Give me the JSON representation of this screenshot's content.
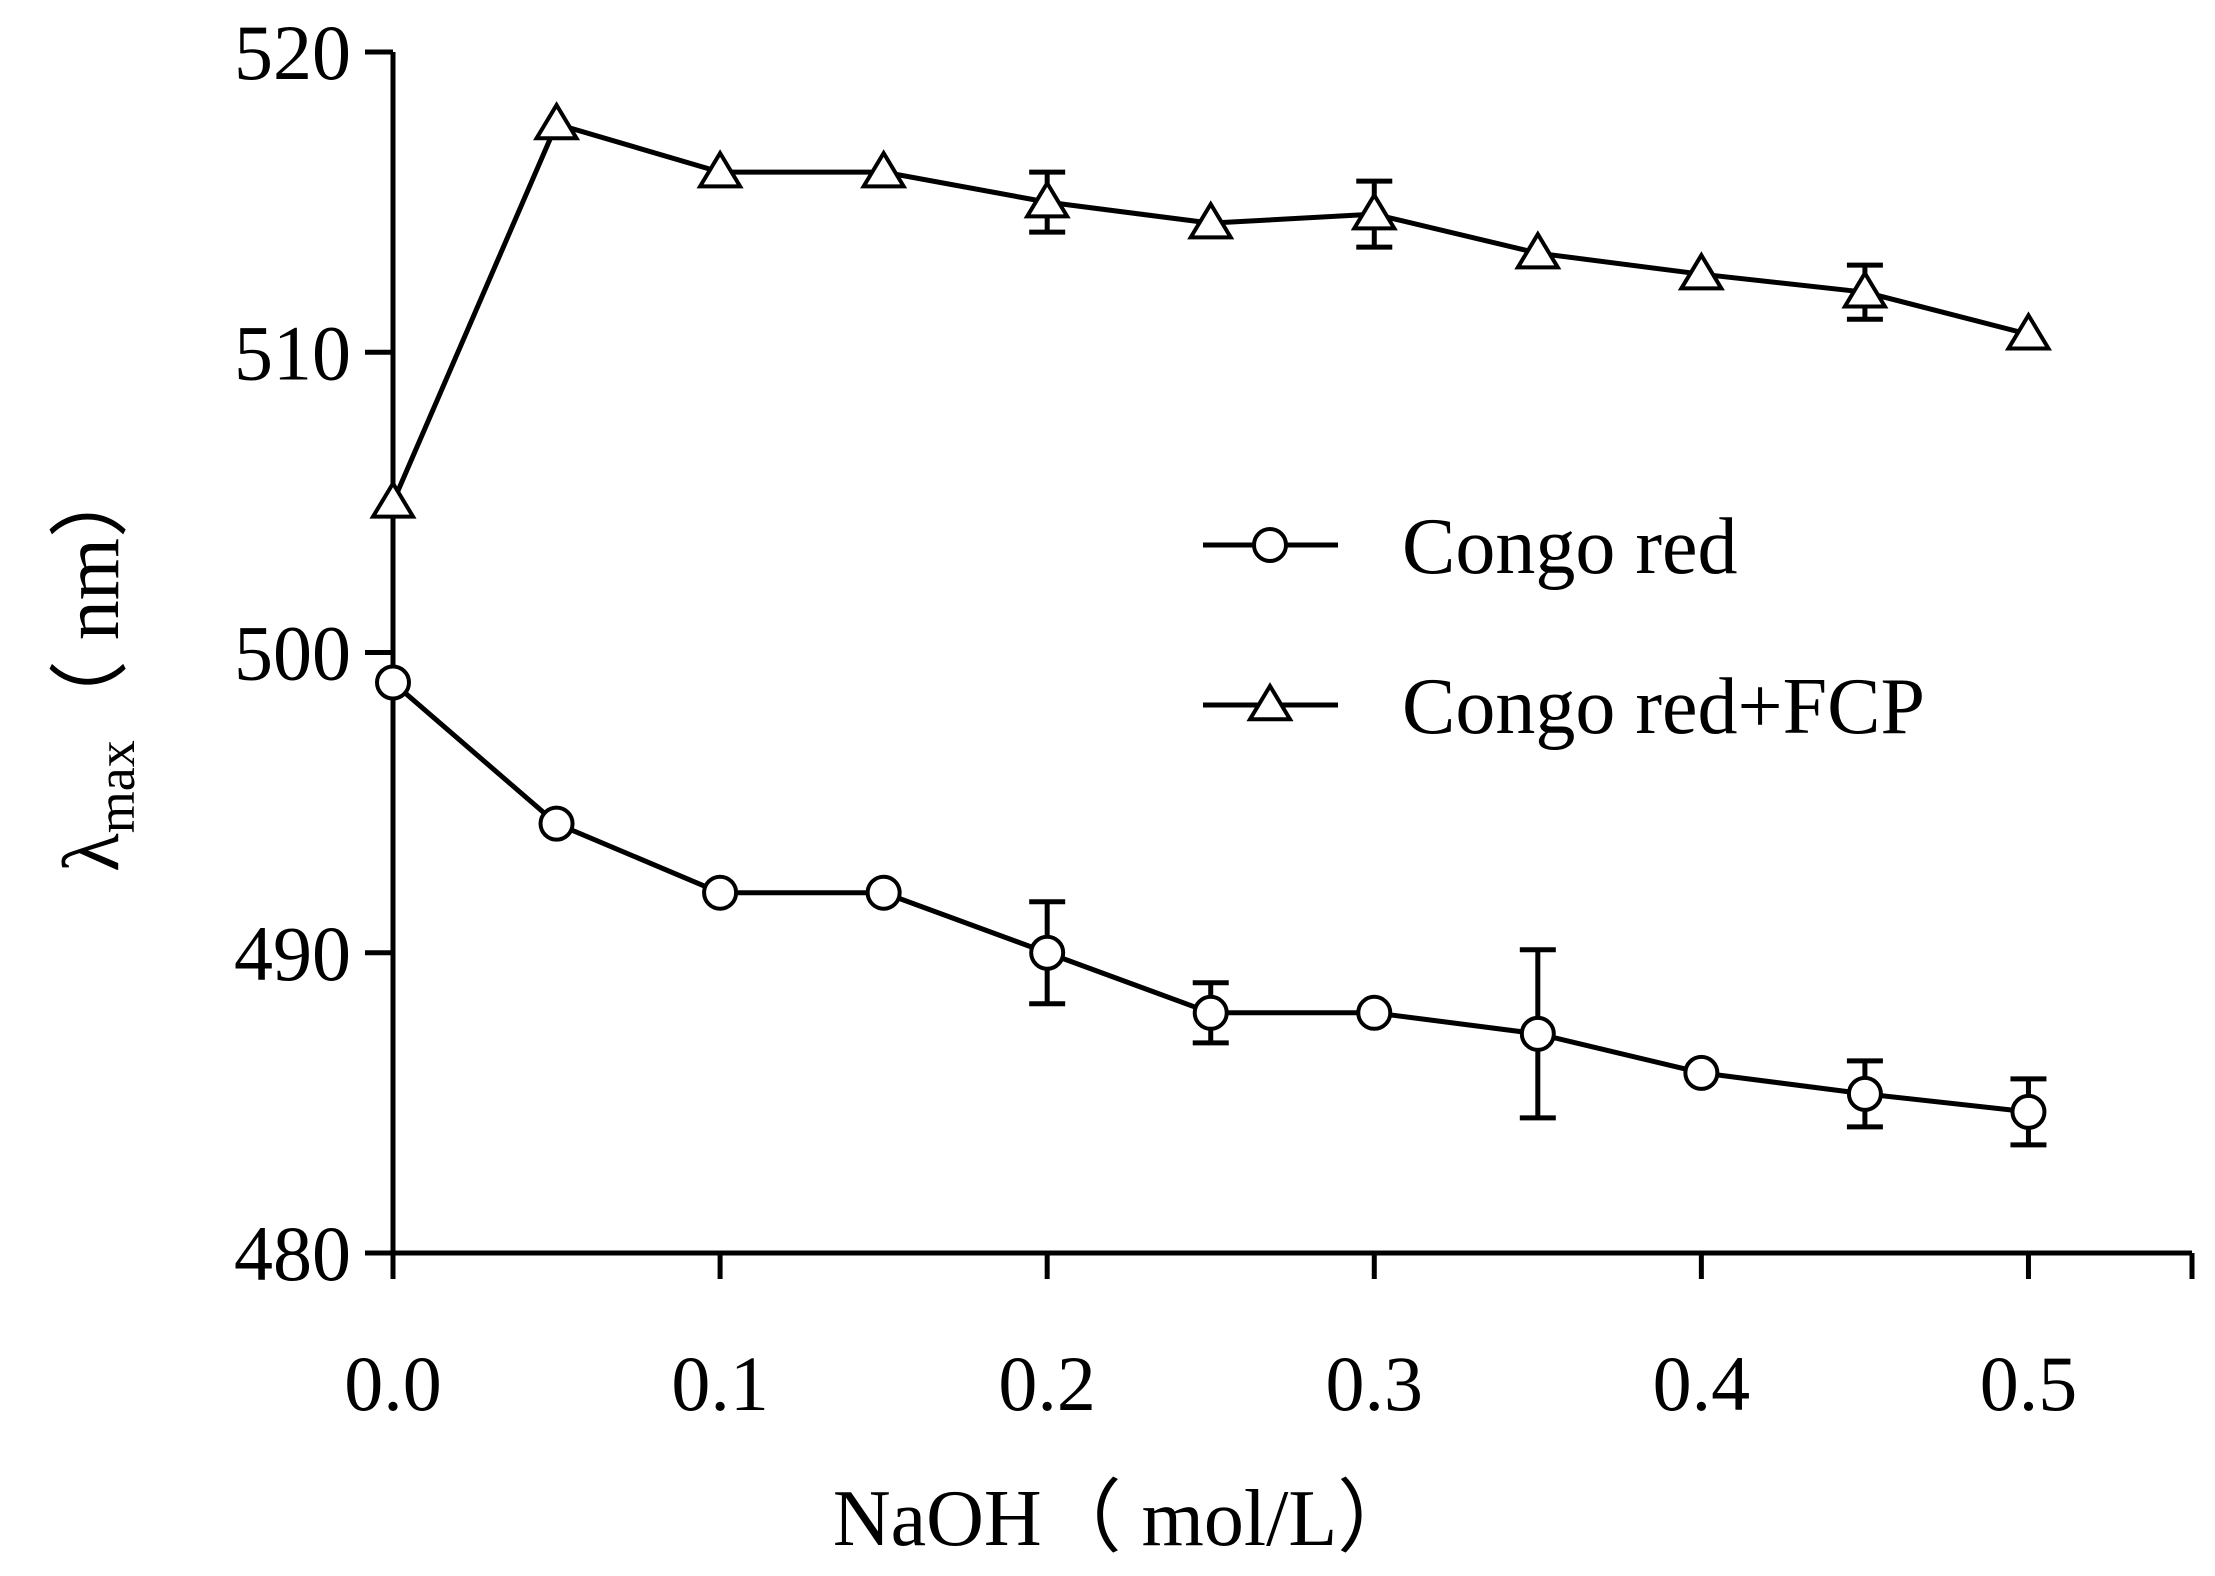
{
  "chart_data": {
    "type": "line",
    "xlabel": "NaOH（ mol/L）",
    "ylabel": {
      "symbol": "λ",
      "subscript": "max",
      "unit": "（ nm）"
    },
    "xlim": [
      0,
      0.55
    ],
    "ylim": [
      480,
      520
    ],
    "x_ticks": [
      "0.0",
      "0.1",
      "0.2",
      "0.3",
      "0.4",
      "0.5"
    ],
    "x_tick_values": [
      0,
      0.1,
      0.2,
      0.3,
      0.4,
      0.5
    ],
    "y_ticks": [
      "480",
      "490",
      "500",
      "510",
      "520"
    ],
    "y_tick_values": [
      480,
      490,
      500,
      510,
      520
    ],
    "x": [
      0,
      0.05,
      0.1,
      0.15,
      0.2,
      0.25,
      0.3,
      0.35,
      0.4,
      0.45,
      0.5
    ],
    "series": [
      {
        "name": "Congo red",
        "marker": "circle",
        "values": [
          499,
          494.3,
          492,
          492,
          490,
          488,
          488,
          487.3,
          486,
          485.3,
          484.7
        ],
        "error": [
          0,
          0,
          0,
          0,
          1.7,
          1,
          0,
          2.8,
          0,
          1.1,
          1.1
        ]
      },
      {
        "name": "Congo red+FCP",
        "marker": "triangle",
        "values": [
          505,
          517.6,
          516,
          516,
          515,
          514.3,
          514.6,
          513.3,
          512.6,
          512,
          510.6
        ],
        "error": [
          0,
          0,
          0,
          0,
          1,
          0,
          1.1,
          0,
          0,
          0.9,
          0
        ]
      }
    ],
    "legend_position": "right",
    "grid": false,
    "colors": {
      "line": "#000000",
      "marker_fill": "#ffffff"
    }
  }
}
